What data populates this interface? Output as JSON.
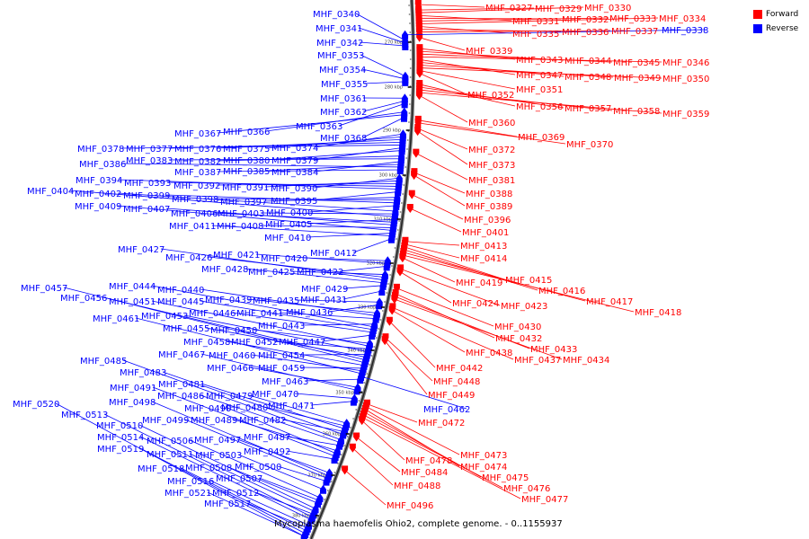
{
  "legend": {
    "forward_label": "Forward",
    "reverse_label": "Reverse",
    "forward_color": "#ff0000",
    "reverse_color": "#0000ff"
  },
  "caption": "Mycoplasma haemofelis Ohio2, complete genome. - 0..1155937",
  "scale_labels": [
    "270 kbp",
    "280 kbp",
    "290 kbp",
    "300 kbp",
    "310 kbp",
    "320 kbp",
    "330 kbp",
    "340 kbp",
    "350 kbp",
    "360 kbp",
    "370 kbp",
    "380 kbp"
  ],
  "forward_genes": [
    "MHF_0327",
    "MHF_0329",
    "MHF_0330",
    "MHF_0331",
    "MHF_0332",
    "MHF_0333",
    "MHF_0334",
    "MHF_0335",
    "MHF_0336",
    "MHF_0337",
    "MHF_0339",
    "MHF_0343",
    "MHF_0344",
    "MHF_0345",
    "MHF_0346",
    "MHF_0347",
    "MHF_0348",
    "MHF_0349",
    "MHF_0350",
    "MHF_0351",
    "MHF_0352",
    "MHF_0356",
    "MHF_0357",
    "MHF_0358",
    "MHF_0359",
    "MHF_0360",
    "MHF_0369",
    "MHF_0370",
    "MHF_0372",
    "MHF_0373",
    "MHF_0381",
    "MHF_0388",
    "MHF_0389",
    "MHF_0396",
    "MHF_0401",
    "MHF_0413",
    "MHF_0414",
    "MHF_0415",
    "MHF_0416",
    "MHF_0417",
    "MHF_0418",
    "MHF_0419",
    "MHF_0423",
    "MHF_0424",
    "MHF_0430",
    "MHF_0432",
    "MHF_0433",
    "MHF_0434",
    "MHF_0437",
    "MHF_0438",
    "MHF_0442",
    "MHF_0448",
    "MHF_0449",
    "MHF_0472",
    "MHF_0473",
    "MHF_0474",
    "MHF_0475",
    "MHF_0476",
    "MHF_0477",
    "MHF_0478",
    "MHF_0484",
    "MHF_0488",
    "MHF_0496"
  ],
  "reverse_genes": [
    "MHF_0338",
    "MHF_0340",
    "MHF_0341",
    "MHF_0342",
    "MHF_0353",
    "MHF_0354",
    "MHF_0355",
    "MHF_0361",
    "MHF_0362",
    "MHF_0363",
    "MHF_0366",
    "MHF_0367",
    "MHF_0368",
    "MHF_0374",
    "MHF_0375",
    "MHF_0376",
    "MHF_0377",
    "MHF_0378",
    "MHF_0379",
    "MHF_0380",
    "MHF_0382",
    "MHF_0383",
    "MHF_0384",
    "MHF_0385",
    "MHF_0386",
    "MHF_0387",
    "MHF_0390",
    "MHF_0391",
    "MHF_0392",
    "MHF_0393",
    "MHF_0394",
    "MHF_0395",
    "MHF_0397",
    "MHF_0398",
    "MHF_0399",
    "MHF_0400",
    "MHF_0402",
    "MHF_0403",
    "MHF_0404",
    "MHF_0405",
    "MHF_0406",
    "MHF_0407",
    "MHF_0408",
    "MHF_0409",
    "MHF_0410",
    "MHF_0411",
    "MHF_0412",
    "MHF_0420",
    "MHF_0421",
    "MHF_0422",
    "MHF_0425",
    "MHF_0426",
    "MHF_0427",
    "MHF_0428",
    "MHF_0429",
    "MHF_0431",
    "MHF_0435",
    "MHF_0436",
    "MHF_0439",
    "MHF_0440",
    "MHF_0441",
    "MHF_0443",
    "MHF_0444",
    "MHF_0445",
    "MHF_0446",
    "MHF_0447",
    "MHF_0450",
    "MHF_0451",
    "MHF_0452",
    "MHF_0453",
    "MHF_0454",
    "MHF_0455",
    "MHF_0456",
    "MHF_0457",
    "MHF_0458",
    "MHF_0459",
    "MHF_0460",
    "MHF_0461",
    "MHF_0462",
    "MHF_0463",
    "MHF_0466",
    "MHF_0467",
    "MHF_0470",
    "MHF_0471",
    "MHF_0479",
    "MHF_0480",
    "MHF_0481",
    "MHF_0482",
    "MHF_0483",
    "MHF_0485",
    "MHF_0486",
    "MHF_0487",
    "MHF_0489",
    "MHF_0490",
    "MHF_0491",
    "MHF_0492",
    "MHF_0497",
    "MHF_0498",
    "MHF_0499",
    "MHF_0500",
    "MHF_0503",
    "MHF_0506",
    "MHF_0507",
    "MHF_0508",
    "MHF_0510",
    "MHF_0511",
    "MHF_0512",
    "MHF_0513",
    "MHF_0514",
    "MHF_0516",
    "MHF_0517",
    "MHF_0518",
    "MHF_0519",
    "MHF_0520",
    "MHF_0521"
  ]
}
